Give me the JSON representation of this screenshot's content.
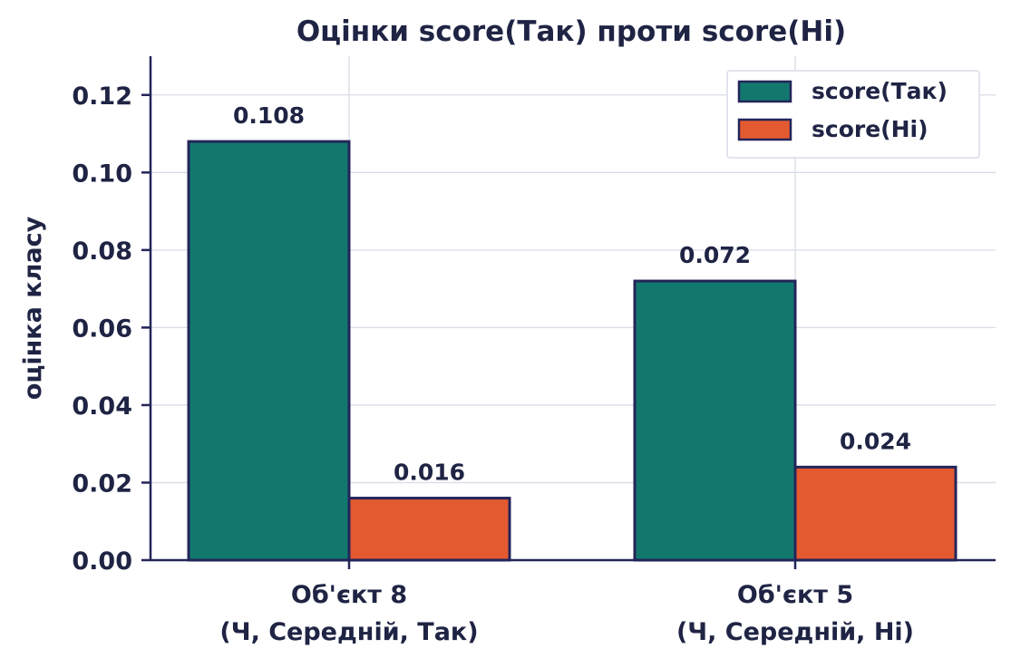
{
  "chart_data": {
    "type": "bar",
    "title": "Оцінки score(Так) проти score(Ні)",
    "ylabel": "оцінка класу",
    "xlabel": "",
    "ylim": [
      0,
      0.13
    ],
    "yticks": [
      "0.00",
      "0.02",
      "0.04",
      "0.06",
      "0.08",
      "0.10",
      "0.12"
    ],
    "categories": [
      {
        "line1": "Об'єкт 8",
        "line2": "(Ч, Середній, Так)"
      },
      {
        "line1": "Об'єкт 5",
        "line2": "(Ч, Середній, Ні)"
      }
    ],
    "series": [
      {
        "name": "score(Так)",
        "color": "#12786e",
        "values": [
          0.108,
          0.072
        ],
        "labels": [
          "0.108",
          "0.072"
        ]
      },
      {
        "name": "score(Ні)",
        "color": "#e35a31",
        "values": [
          0.016,
          0.024
        ],
        "labels": [
          "0.016",
          "0.024"
        ]
      }
    ],
    "grid": true,
    "legend": "top-right",
    "colors": {
      "edge": "#23255a",
      "text": "#1f2444",
      "grid": "#d9dce8"
    }
  }
}
